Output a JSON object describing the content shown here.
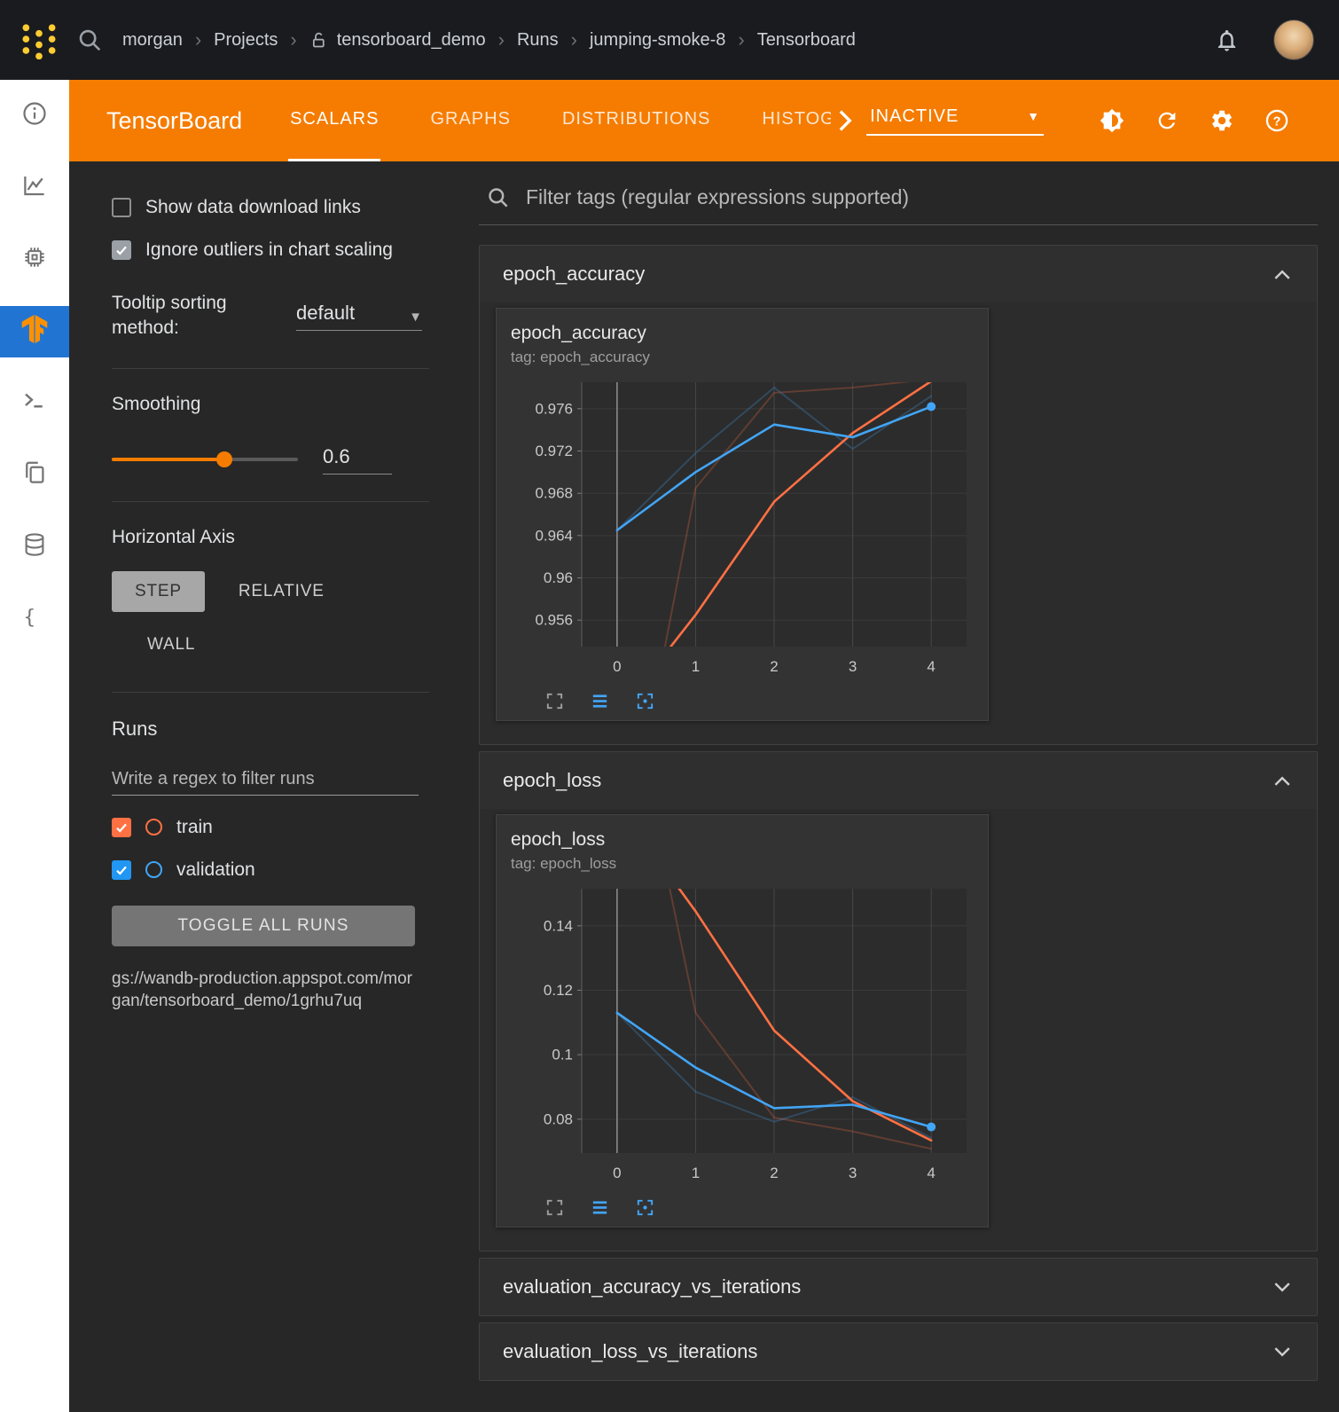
{
  "topbar": {
    "breadcrumb": [
      "morgan",
      "Projects",
      "tensorboard_demo",
      "Runs",
      "jumping-smoke-8",
      "Tensorboard"
    ]
  },
  "tb_header": {
    "title": "TensorBoard",
    "tabs": [
      "SCALARS",
      "GRAPHS",
      "DISTRIBUTIONS",
      "HISTOGRAMS"
    ],
    "active_tab": "SCALARS",
    "status_dropdown": "INACTIVE"
  },
  "settings": {
    "show_links_label": "Show data download links",
    "ignore_outliers_label": "Ignore outliers in chart scaling",
    "tooltip_label": "Tooltip sorting method:",
    "tooltip_value": "default",
    "smoothing_label": "Smoothing",
    "smoothing_value": "0.6",
    "horizontal_axis_label": "Horizontal Axis",
    "axis_step": "STEP",
    "axis_relative": "RELATIVE",
    "axis_wall": "WALL",
    "runs_label": "Runs",
    "runs_placeholder": "Write a regex to filter runs",
    "run_train": "train",
    "run_validation": "validation",
    "toggle_all": "TOGGLE ALL RUNS",
    "gcs_path": "gs://wandb-production.appspot.com/morgan/tensorboard_demo/1grhu7uq"
  },
  "charts_panel": {
    "filter_placeholder": "Filter tags (regular expressions supported)",
    "sections": [
      "epoch_accuracy",
      "epoch_loss",
      "evaluation_accuracy_vs_iterations",
      "evaluation_loss_vs_iterations"
    ]
  },
  "colors": {
    "tb_orange": "#f57c00",
    "train": "#ff7043",
    "validation": "#42a5f5",
    "validation_checkbox": "#2196f3"
  },
  "chart_data": [
    {
      "type": "line",
      "title": "epoch_accuracy",
      "subtitle": "tag: epoch_accuracy",
      "xlabel": "",
      "ylabel": "",
      "xlim": [
        -0.45,
        4.45
      ],
      "ylim": [
        0.9535,
        0.9785
      ],
      "xticks": [
        0,
        1,
        2,
        3,
        4
      ],
      "xticklabels": [
        "0",
        "1",
        "2",
        "3",
        "4"
      ],
      "yticks": [
        0.956,
        0.96,
        0.964,
        0.968,
        0.972,
        0.976
      ],
      "yticklabels": [
        "0.956",
        "0.96",
        "0.964",
        "0.968",
        "0.972",
        "0.976"
      ],
      "grid": true,
      "legend": "none",
      "series": [
        {
          "name": "train (raw)",
          "color": "#ff7043",
          "opacity": 0.25,
          "width": 2,
          "x": [
            0,
            1,
            2,
            3,
            4
          ],
          "y": [
            0.93,
            0.9685,
            0.9775,
            0.978,
            0.9788
          ]
        },
        {
          "name": "validation (raw)",
          "color": "#42a5f5",
          "opacity": 0.25,
          "width": 2,
          "x": [
            0,
            1,
            2,
            3,
            4
          ],
          "y": [
            0.9645,
            0.9718,
            0.978,
            0.9722,
            0.9772
          ]
        },
        {
          "name": "train (smoothed 0.6)",
          "color": "#ff7043",
          "opacity": 1,
          "width": 2.6,
          "x": [
            0,
            1,
            2,
            3,
            4
          ],
          "y": [
            0.947,
            0.9565,
            0.9672,
            0.9737,
            0.9786
          ]
        },
        {
          "name": "validation (smoothed 0.6)",
          "color": "#42a5f5",
          "opacity": 1,
          "width": 2.6,
          "end_dot": true,
          "x": [
            0,
            1,
            2,
            3,
            4
          ],
          "y": [
            0.9645,
            0.97,
            0.9745,
            0.9733,
            0.9762
          ]
        }
      ]
    },
    {
      "type": "line",
      "title": "epoch_loss",
      "subtitle": "tag: epoch_loss",
      "xlabel": "",
      "ylabel": "",
      "xlim": [
        -0.45,
        4.45
      ],
      "ylim": [
        0.0695,
        0.1515
      ],
      "xticks": [
        0,
        1,
        2,
        3,
        4
      ],
      "xticklabels": [
        "0",
        "1",
        "2",
        "3",
        "4"
      ],
      "yticks": [
        0.08,
        0.1,
        0.12,
        0.14
      ],
      "yticklabels": [
        "0.08",
        "0.1",
        "0.12",
        "0.14"
      ],
      "grid": true,
      "legend": "none",
      "series": [
        {
          "name": "train (raw)",
          "color": "#ff7043",
          "opacity": 0.25,
          "width": 2,
          "x": [
            0,
            1,
            2,
            3,
            4
          ],
          "y": [
            0.23,
            0.113,
            0.0805,
            0.0762,
            0.0708
          ]
        },
        {
          "name": "validation (raw)",
          "color": "#42a5f5",
          "opacity": 0.25,
          "width": 2,
          "x": [
            0,
            1,
            2,
            3,
            4
          ],
          "y": [
            0.113,
            0.0885,
            0.0792,
            0.0868,
            0.0742
          ]
        },
        {
          "name": "train (smoothed 0.6)",
          "color": "#ff7043",
          "opacity": 1,
          "width": 2.6,
          "x": [
            0,
            1,
            2,
            3,
            4
          ],
          "y": [
            0.178,
            0.1445,
            0.1075,
            0.0856,
            0.0734
          ]
        },
        {
          "name": "validation (smoothed 0.6)",
          "color": "#42a5f5",
          "opacity": 1,
          "width": 2.6,
          "end_dot": true,
          "x": [
            0,
            1,
            2,
            3,
            4
          ],
          "y": [
            0.113,
            0.096,
            0.0834,
            0.0845,
            0.0776
          ]
        }
      ]
    }
  ]
}
